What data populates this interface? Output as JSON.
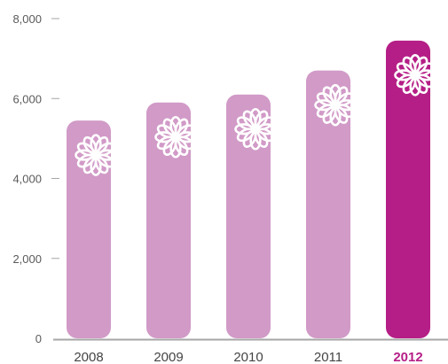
{
  "chart_data": {
    "type": "bar",
    "categories": [
      "2008",
      "2009",
      "2010",
      "2011",
      "2012"
    ],
    "values": [
      5450,
      5900,
      6100,
      6700,
      7450
    ],
    "highlight_category": "2012",
    "ylim": [
      0,
      8000
    ],
    "yticks": [
      0,
      2000,
      4000,
      6000,
      8000
    ],
    "ytick_labels": [
      "0",
      "2,000",
      "4,000",
      "6,000",
      "8,000"
    ],
    "title": "",
    "xlabel": "",
    "ylabel": "",
    "grid": false,
    "legend": "none",
    "bar_icon": "daisy-flower-icon",
    "colors": {
      "bar": "#d19ac7",
      "bar_highlight": "#b51e86",
      "axis": "#a6a6a6",
      "tick_text": "#5a5a5a",
      "label_text": "#444444",
      "label_highlight": "#b51e86",
      "icon": "#ffffff"
    }
  }
}
